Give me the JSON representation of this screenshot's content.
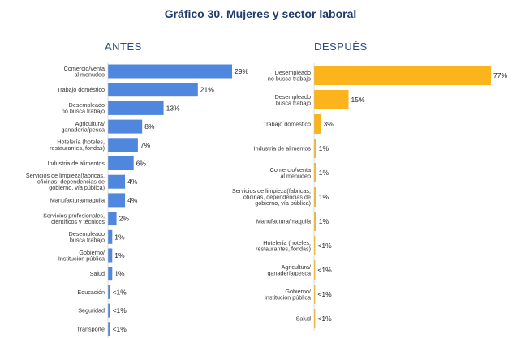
{
  "title": "Gráfico 30. Mujeres y sector laboral",
  "chart_data": [
    {
      "type": "bar",
      "orientation": "horizontal",
      "title": "ANTES",
      "bar_color": "#4f86de",
      "categories": [
        "Comercio/venta\nal menudeo",
        "Trabajo doméstico",
        "Desempleado\nno busca trabajo",
        "Agricultura/\nganadería/pesca",
        "Hotelería (hoteles,\nrestaurantes, fondas)",
        "Industria de alimentos",
        "Servicios de limpieza(fabricas,\noficinas, dependencias de\ngobierno, vía pública)",
        "Manufactura/maquila",
        "Servicios profesionales,\ncientíficos y técnicos",
        "Desempleado\nbusca trabajo",
        "Gobierno/\nInstitución pública",
        "Salud",
        "Educación",
        "Seguridad",
        "Transporte"
      ],
      "values": [
        29,
        21,
        13,
        8,
        7,
        6,
        4,
        4,
        2,
        1,
        1,
        1,
        0.5,
        0.5,
        0.5
      ],
      "value_labels": [
        "29%",
        "21%",
        "13%",
        "8%",
        "7%",
        "6%",
        "4%",
        "4%",
        "2%",
        "1%",
        "1%",
        "1%",
        "<1%",
        "<1%",
        "<1%"
      ],
      "unit": "%"
    },
    {
      "type": "bar",
      "orientation": "horizontal",
      "title": "DESPUÉS",
      "bar_color": "#fbb41c",
      "categories": [
        "Desempleado\nno busca trabajo",
        "Desempleado\nbusca trabajo",
        "Trabajo doméstico",
        "Industria de alimentos",
        "Comercio/venta\nal menudeo",
        "Servicios de limpieza(fabricas,\noficinas, dependencias de\ngobierno, vía pública)",
        "Manufactura/maquila",
        "Hotelería (hoteles,\nrestaurantes, fondas)",
        "Agricultura/\nganadería/pesca",
        "Gobierno/\nInstitución pública",
        "Salud"
      ],
      "values": [
        77,
        15,
        3,
        1,
        1,
        1,
        1,
        0.5,
        0.5,
        0.5,
        0.5
      ],
      "value_labels": [
        "77%",
        "15%",
        "3%",
        "1%",
        "1%",
        "1%",
        "1%",
        "<1%",
        "<1%",
        "<1%",
        "<1%"
      ],
      "unit": "%"
    }
  ]
}
